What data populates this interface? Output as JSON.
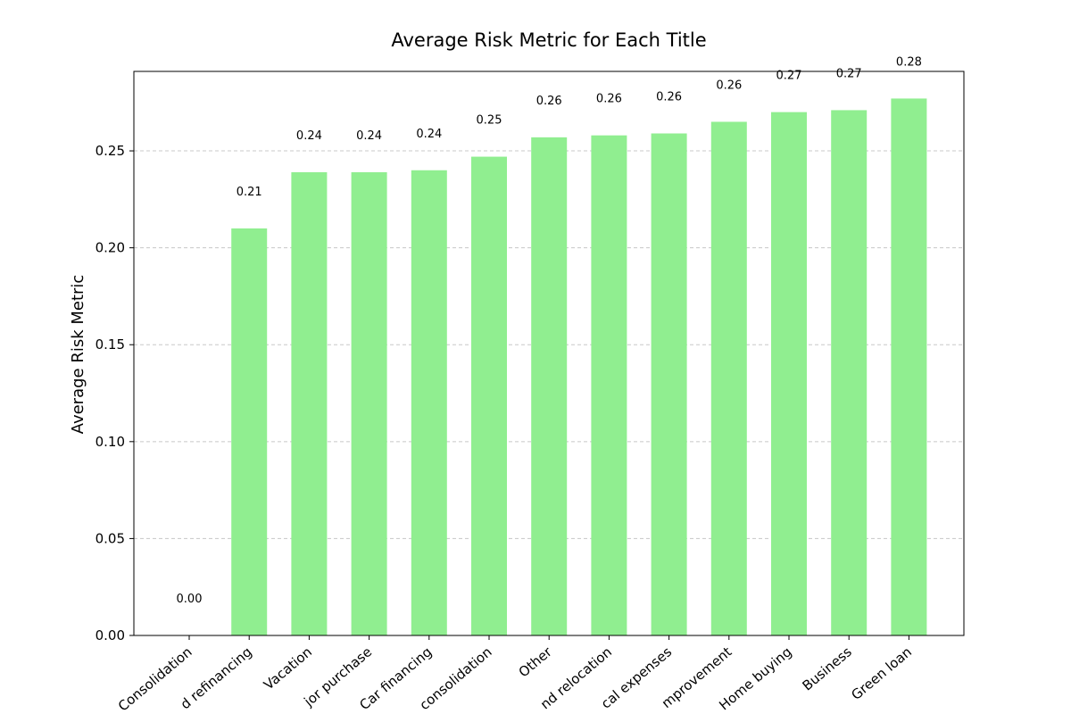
{
  "chart_data": {
    "type": "bar",
    "title": "Average Risk Metric for Each Title",
    "xlabel": "",
    "ylabel": "Average Risk Metric",
    "categories": [
      "Consolidation",
      "d refinancing",
      "Vacation",
      "jor purchase",
      "Car financing",
      "consolidation",
      "Other",
      "nd relocation",
      "cal expenses",
      "mprovement",
      "Home buying",
      "Business",
      "Green loan"
    ],
    "values": [
      0.0,
      0.21,
      0.239,
      0.239,
      0.24,
      0.247,
      0.257,
      0.258,
      0.259,
      0.265,
      0.27,
      0.271,
      0.277
    ],
    "data_labels": [
      "0.00",
      "0.21",
      "0.24",
      "0.24",
      "0.24",
      "0.25",
      "0.26",
      "0.26",
      "0.26",
      "0.26",
      "0.27",
      "0.27",
      "0.28"
    ],
    "yticks": [
      "0.00",
      "0.05",
      "0.10",
      "0.15",
      "0.20",
      "0.25"
    ],
    "ylim": [
      0,
      0.291
    ],
    "bar_color": "#90ee90",
    "grid": "y-dashed",
    "legend": "none"
  }
}
